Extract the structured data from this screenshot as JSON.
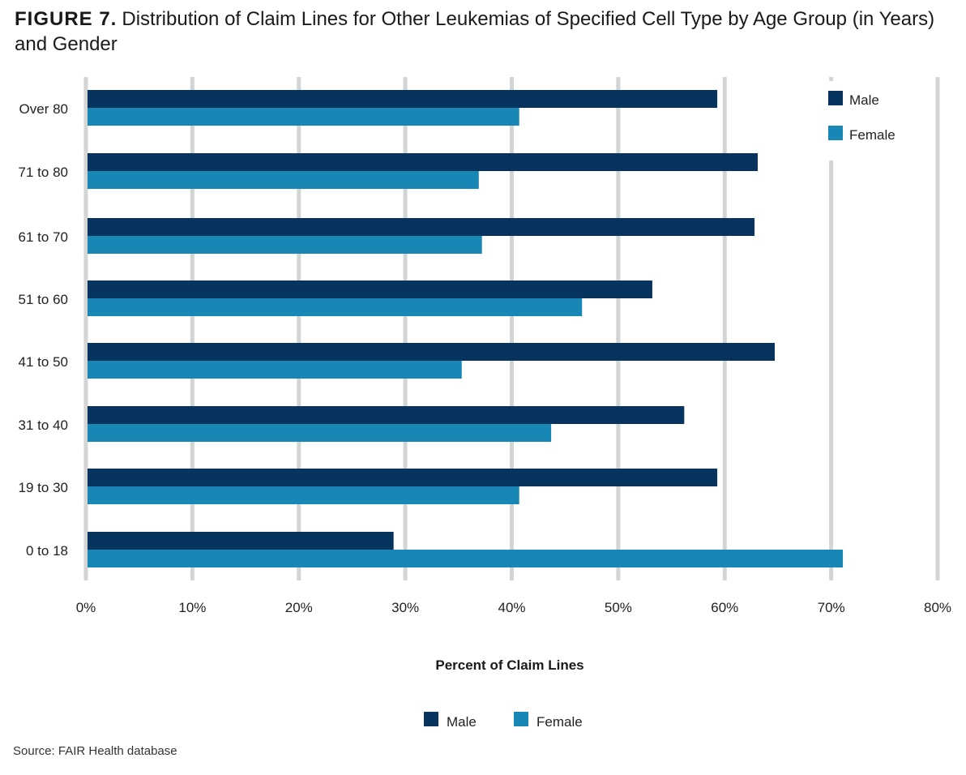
{
  "figure": {
    "label": "FIGURE 7.",
    "title": "Distribution of Claim Lines for Other Leukemias of Specified Cell Type by Age Group (in Years) and Gender",
    "source": "Source: FAIR Health database"
  },
  "chart_data": {
    "type": "bar",
    "orientation": "horizontal",
    "title": "Distribution of Claim Lines for Other Leukemias of Specified Cell Type by Age Group (in Years) and Gender",
    "xlabel": "Percent of Claim Lines",
    "ylabel": "",
    "xlim": [
      0,
      80
    ],
    "x_ticks": [
      0,
      10,
      20,
      30,
      40,
      50,
      60,
      70,
      80
    ],
    "x_tick_labels": [
      "0%",
      "10%",
      "20%",
      "30%",
      "40%",
      "50%",
      "60%",
      "70%",
      "80%"
    ],
    "grid": true,
    "categories": [
      "Over 80",
      "71 to 80",
      "61 to 70",
      "51 to 60",
      "41 to 50",
      "31 to 40",
      "19 to 30",
      "0 to 18"
    ],
    "series": [
      {
        "name": "Male",
        "color": "#07335f",
        "values": [
          59.3,
          63.1,
          62.8,
          53.2,
          64.7,
          56.2,
          59.3,
          28.9
        ]
      },
      {
        "name": "Female",
        "color": "#1987b5",
        "values": [
          40.7,
          36.9,
          37.2,
          46.6,
          35.3,
          43.7,
          40.7,
          71.1
        ]
      }
    ],
    "legend_top": [
      "Male",
      "Female"
    ],
    "legend_bottom": [
      "Male",
      "Female"
    ]
  }
}
